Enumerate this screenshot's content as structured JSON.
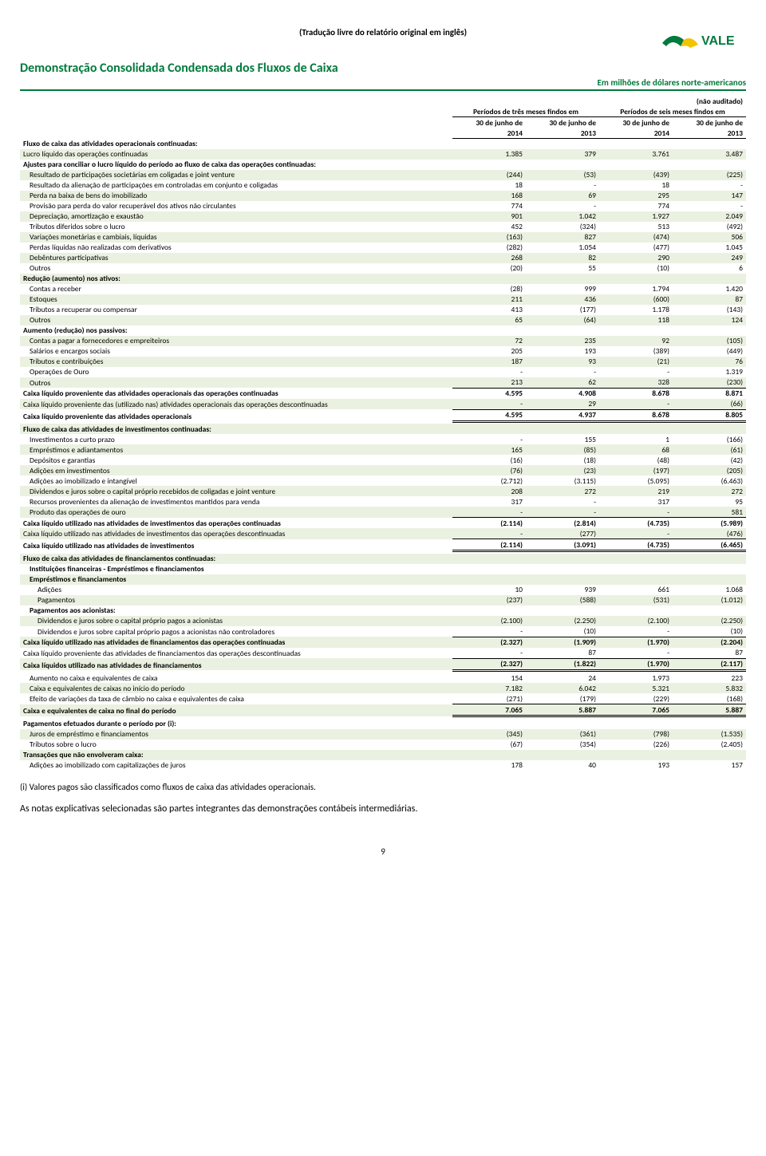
{
  "header": {
    "translation_note": "(Tradução livre do relatório original em inglês)",
    "title": "Demonstração Consolidada Condensada dos Fluxos de Caixa",
    "subtitle": "Em milhões de dólares norte-americanos",
    "logo_text": "VALE",
    "nao_auditado": "(não auditado)"
  },
  "colors": {
    "brand_green": "#007a3d",
    "brand_yellow": "#f2c400",
    "alt_row": "#ebf1e1"
  },
  "columns": {
    "period1": "Períodos de três meses findos em",
    "period2": "Períodos de seis meses findos em",
    "c1_l1": "30 de junho de",
    "c1_l2": "2014",
    "c2_l1": "30 de junho de",
    "c2_l2": "2013",
    "c3_l1": "30 de junho de",
    "c3_l2": "2014",
    "c4_l1": "30 de junho de",
    "c4_l2": "2013"
  },
  "rows": [
    {
      "label": "Fluxo de caixa das atividades operacionais continuadas:",
      "bold": true
    },
    {
      "label": "Lucro líquido das operações continuadas",
      "v": [
        "1.385",
        "379",
        "3.761",
        "3.487"
      ],
      "alt": true
    },
    {
      "label": "Ajustes para conciliar o lucro líquido do período ao fluxo de caixa das operações continuadas:",
      "bold": true
    },
    {
      "label": "Resultado de participações societárias em coligadas e joint venture",
      "indent": 1,
      "v": [
        "(244)",
        "(53)",
        "(439)",
        "(225)"
      ],
      "alt": true
    },
    {
      "label": "Resultado da alienação de participações em controladas em conjunto e coligadas",
      "indent": 1,
      "v": [
        "18",
        "-",
        "18",
        "-"
      ]
    },
    {
      "label": "Perda na baixa de bens do imobilizado",
      "indent": 1,
      "v": [
        "168",
        "69",
        "295",
        "147"
      ],
      "alt": true
    },
    {
      "label": "Provisão para perda do valor recuperável dos ativos não circulantes",
      "indent": 1,
      "v": [
        "774",
        "-",
        "774",
        "-"
      ]
    },
    {
      "label": "Depreciação, amortização e exaustão",
      "indent": 1,
      "v": [
        "901",
        "1.042",
        "1.927",
        "2.049"
      ],
      "alt": true
    },
    {
      "label": "Tributos diferidos sobre o lucro",
      "indent": 1,
      "v": [
        "452",
        "(324)",
        "513",
        "(492)"
      ]
    },
    {
      "label": "Variações monetárias e cambiais, líquidas",
      "indent": 1,
      "v": [
        "(163)",
        "827",
        "(474)",
        "506"
      ],
      "alt": true
    },
    {
      "label": "Perdas líquidas não realizadas com derivativos",
      "indent": 1,
      "v": [
        "(282)",
        "1.054",
        "(477)",
        "1.045"
      ]
    },
    {
      "label": "Debêntures participativas",
      "indent": 1,
      "v": [
        "268",
        "82",
        "290",
        "249"
      ],
      "alt": true
    },
    {
      "label": "Outros",
      "indent": 1,
      "v": [
        "(20)",
        "55",
        "(10)",
        "6"
      ]
    },
    {
      "label": "Redução (aumento) nos ativos:",
      "bold": true,
      "alt": true
    },
    {
      "label": "Contas a receber",
      "indent": 1,
      "v": [
        "(28)",
        "999",
        "1.794",
        "1.420"
      ]
    },
    {
      "label": "Estoques",
      "indent": 1,
      "v": [
        "211",
        "436",
        "(600)",
        "87"
      ],
      "alt": true
    },
    {
      "label": "Tributos a recuperar ou compensar",
      "indent": 1,
      "v": [
        "413",
        "(177)",
        "1.178",
        "(143)"
      ]
    },
    {
      "label": "Outros",
      "indent": 1,
      "v": [
        "65",
        "(64)",
        "118",
        "124"
      ],
      "alt": true
    },
    {
      "label": "Aumento (redução) nos passivos:",
      "bold": true
    },
    {
      "label": "Contas a pagar a fornecedores e empreiteiros",
      "indent": 1,
      "v": [
        "72",
        "235",
        "92",
        "(105)"
      ],
      "alt": true
    },
    {
      "label": "Salários e encargos sociais",
      "indent": 1,
      "v": [
        "205",
        "193",
        "(389)",
        "(449)"
      ]
    },
    {
      "label": "Tributos e contribuições",
      "indent": 1,
      "v": [
        "187",
        "93",
        "(21)",
        "76"
      ],
      "alt": true
    },
    {
      "label": "Operações de Ouro",
      "indent": 1,
      "v": [
        "-",
        "-",
        "-",
        "1.319"
      ]
    },
    {
      "label": "Outros",
      "indent": 1,
      "v": [
        "213",
        "62",
        "328",
        "(230)"
      ],
      "alt": true
    },
    {
      "label": "Caixa líquido proveniente das atividades operacionais das operações continuadas",
      "bold": true,
      "v": [
        "4.595",
        "4.908",
        "8.678",
        "8.871"
      ],
      "topline": true
    },
    {
      "label": "Caixa líquido proveniente das (utilizado nas) atividades operacionais das operações descontinuadas",
      "v": [
        "-",
        "29",
        "-",
        "(66)"
      ],
      "alt": true
    },
    {
      "label": "Caixa líquido proveniente das atividades operacionais",
      "bold": true,
      "v": [
        "4.595",
        "4.937",
        "8.678",
        "8.805"
      ],
      "dbl": true
    },
    {
      "spacer": 3
    },
    {
      "label": "Fluxo de caixa das atividades de investimentos continuadas:",
      "bold": true,
      "alt": true
    },
    {
      "label": "Investimentos a curto prazo",
      "indent": 1,
      "v": [
        "-",
        "155",
        "1",
        "(166)"
      ]
    },
    {
      "label": "Empréstimos e adiantamentos",
      "indent": 1,
      "v": [
        "165",
        "(85)",
        "68",
        "(61)"
      ],
      "alt": true
    },
    {
      "label": "Depósitos e garantias",
      "indent": 1,
      "v": [
        "(16)",
        "(18)",
        "(48)",
        "(42)"
      ]
    },
    {
      "label": "Adições em investimentos",
      "indent": 1,
      "v": [
        "(76)",
        "(23)",
        "(197)",
        "(205)"
      ],
      "alt": true
    },
    {
      "label": "Adições ao imobilizado e intangível",
      "indent": 1,
      "v": [
        "(2.712)",
        "(3.115)",
        "(5.095)",
        "(6.463)"
      ]
    },
    {
      "label": "Dividendos e juros sobre o capital próprio recebidos de coligadas e joint venture",
      "indent": 1,
      "v": [
        "208",
        "272",
        "219",
        "272"
      ],
      "alt": true
    },
    {
      "label": "Recursos provenientes da alienação de investimentos mantidos para venda",
      "indent": 1,
      "v": [
        "317",
        "-",
        "317",
        "95"
      ]
    },
    {
      "label": "Produto das operações de ouro",
      "indent": 1,
      "v": [
        "-",
        "-",
        "-",
        "581"
      ],
      "alt": true
    },
    {
      "label": "Caixa líquido utilizado nas atividades de investimentos das operações continuadas",
      "bold": true,
      "v": [
        "(2.114)",
        "(2.814)",
        "(4.735)",
        "(5.989)"
      ],
      "topline": true
    },
    {
      "label": "Caixa líquido utilizado nas atividades de investimentos das operações descontinuadas",
      "v": [
        "-",
        "(277)",
        "-",
        "(476)"
      ],
      "alt": true
    },
    {
      "label": "Caixa líquido utilizado nas atividades de investimentos",
      "bold": true,
      "v": [
        "(2.114)",
        "(3.091)",
        "(4.735)",
        "(6.465)"
      ],
      "dbl": true
    },
    {
      "spacer": 3
    },
    {
      "label": "Fluxo de caixa das atividades de financiamentos continuadas:",
      "bold": true,
      "alt": true
    },
    {
      "label": "Instituições financeiras - Empréstimos e financiamentos",
      "bold": true,
      "indent": 1
    },
    {
      "label": "Empréstimos e financiamentos",
      "bold": true,
      "indent": 1,
      "alt": true
    },
    {
      "label": "Adições",
      "indent": 2,
      "v": [
        "10",
        "939",
        "661",
        "1.068"
      ]
    },
    {
      "label": "Pagamentos",
      "indent": 2,
      "v": [
        "(237)",
        "(588)",
        "(531)",
        "(1.012)"
      ],
      "alt": true
    },
    {
      "label": "Pagamentos aos acionistas:",
      "bold": true,
      "indent": 1
    },
    {
      "label": "Dividendos e juros sobre o capital próprio pagos a acionistas",
      "indent": 2,
      "v": [
        "(2.100)",
        "(2.250)",
        "(2.100)",
        "(2.250)"
      ],
      "alt": true
    },
    {
      "label": "Dividendos e juros sobre capital próprio pagos a acionistas não controladores",
      "indent": 2,
      "v": [
        "-",
        "(10)",
        "-",
        "(10)"
      ]
    },
    {
      "label": "Caixa líquido utilizado nas atividades de financiamentos das operações continuadas",
      "bold": true,
      "v": [
        "(2.327)",
        "(1.909)",
        "(1.970)",
        "(2.204)"
      ],
      "alt": true,
      "topline": true
    },
    {
      "label": "Caixa líquido proveniente das atividades de financiamentos das operações descontinuadas",
      "v": [
        "-",
        "87",
        "-",
        "87"
      ]
    },
    {
      "label": "Caixa líquidos utilizado nas atividades de financiamentos",
      "bold": true,
      "v": [
        "(2.327)",
        "(1.822)",
        "(1.970)",
        "(2.117)"
      ],
      "alt": true,
      "dbl": true
    },
    {
      "spacer": 3
    },
    {
      "label": "Aumento no caixa e equivalentes de caixa",
      "indent": 1,
      "v": [
        "154",
        "24",
        "1.973",
        "223"
      ]
    },
    {
      "label": "Caixa e equivalentes de caixas no início do período",
      "indent": 1,
      "v": [
        "7.182",
        "6.042",
        "5.321",
        "5.832"
      ],
      "alt": true
    },
    {
      "label": "Efeito de variações da taxa de câmbio no caixa e equivalentes de caixa",
      "indent": 1,
      "v": [
        "(271)",
        "(179)",
        "(229)",
        "(168)"
      ]
    },
    {
      "label": "Caixa e equivalentes de caixa no final do período",
      "bold": true,
      "v": [
        "7.065",
        "5.887",
        "7.065",
        "5.887"
      ],
      "alt": true,
      "dbl": true
    },
    {
      "spacer": 3
    },
    {
      "label": "Pagamentos efetuados durante o período por (i):",
      "bold": true
    },
    {
      "label": "Juros de empréstimo e financiamentos",
      "indent": 1,
      "v": [
        "(345)",
        "(361)",
        "(798)",
        "(1.535)"
      ],
      "alt": true
    },
    {
      "label": "Tributos sobre o lucro",
      "indent": 1,
      "v": [
        "(67)",
        "(354)",
        "(226)",
        "(2.405)"
      ]
    },
    {
      "label": "Transações que não envolveram caixa:",
      "bold": true,
      "alt": true
    },
    {
      "label": "Adições ao imobilizado com capitalizações de juros",
      "indent": 1,
      "v": [
        "178",
        "40",
        "193",
        "157"
      ]
    }
  ],
  "footnote": "(i) Valores pagos são classificados como fluxos de caixa das atividades operacionais.",
  "notes_line": "As notas explicativas selecionadas são partes integrantes das demonstrações contábeis intermediárias.",
  "page_number": "9"
}
